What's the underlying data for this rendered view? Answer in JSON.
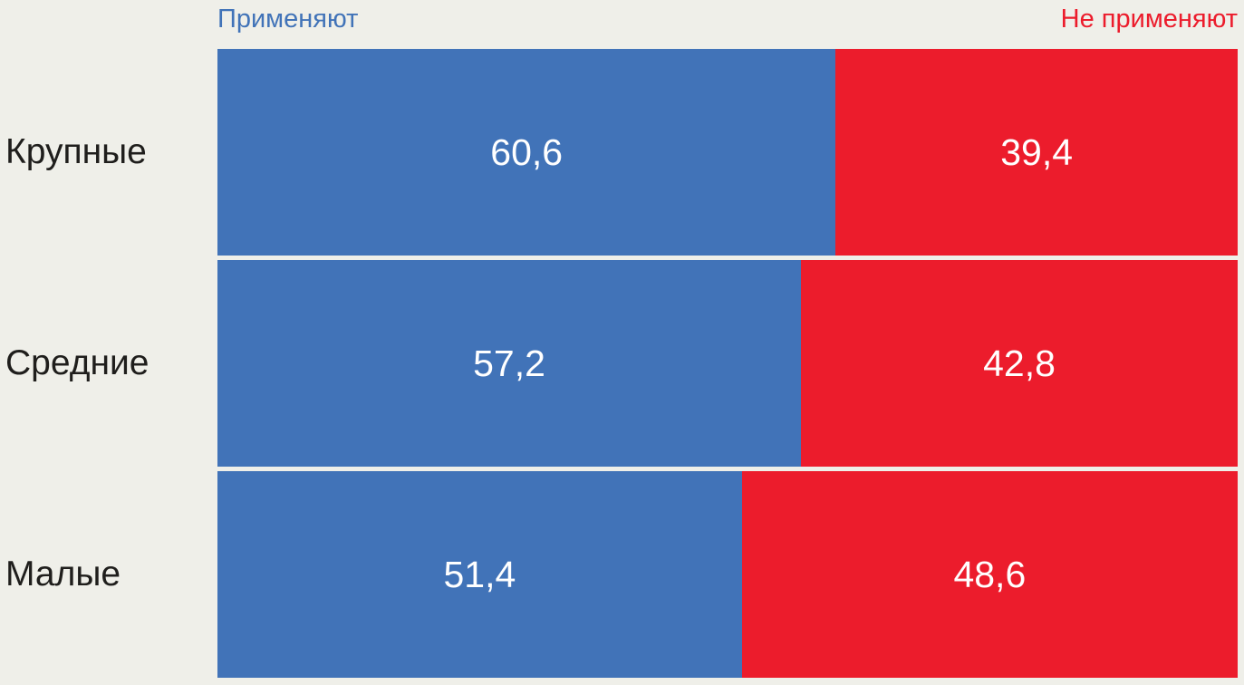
{
  "chart_data": {
    "type": "bar",
    "orientation": "horizontal",
    "stacked": true,
    "unit": "percent",
    "title": "",
    "xlabel": "",
    "ylabel": "",
    "xlim": [
      0,
      100
    ],
    "grid": false,
    "legend_position": "top",
    "background_color": "#EFEFE9",
    "value_label_color": "#FFFFFF",
    "category_label_color": "#1F1E1C",
    "categories": [
      "Крупные",
      "Средние",
      "Малые"
    ],
    "series": [
      {
        "name": "Применяют",
        "color": "#4173B8",
        "values": [
          60.6,
          57.2,
          51.4
        ],
        "labels": [
          "60,6",
          "57,2",
          "51,4"
        ]
      },
      {
        "name": "Не применяют",
        "color": "#EC1C2C",
        "values": [
          39.4,
          42.8,
          48.6
        ],
        "labels": [
          "39,4",
          "42,8",
          "48,6"
        ]
      }
    ]
  }
}
